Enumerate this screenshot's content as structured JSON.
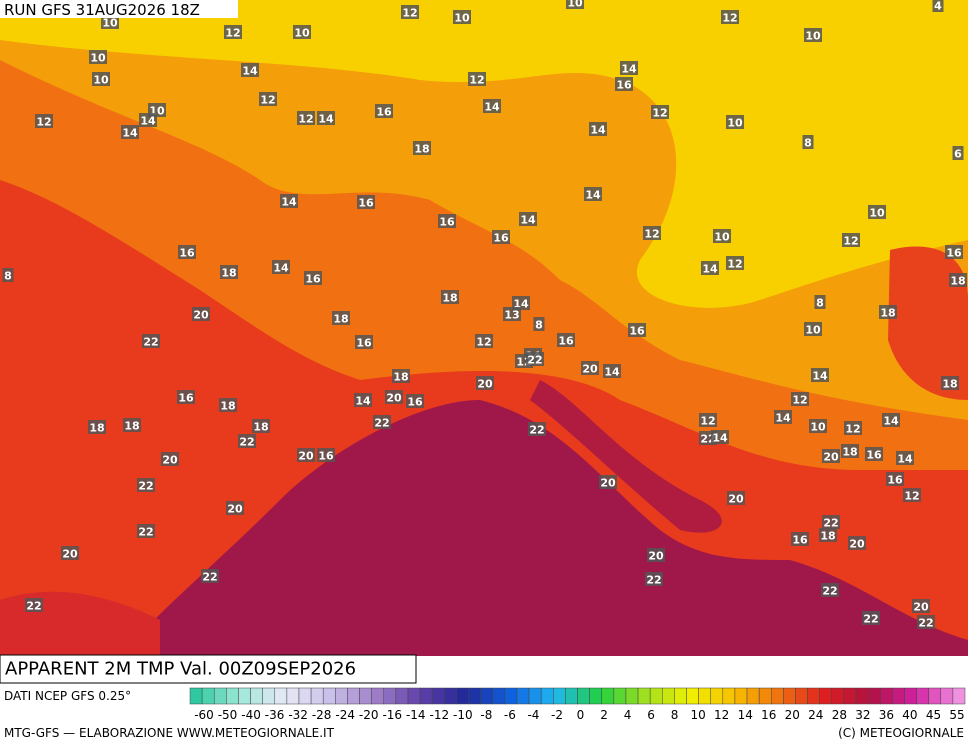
{
  "header": {
    "run": "RUN GFS 31AUG2026 18Z",
    "title": "APPARENT 2M TMP Val. 00Z09SEP2026"
  },
  "map": {
    "labels": [
      10,
      12,
      10,
      12,
      10,
      10,
      12,
      10,
      4,
      10,
      10,
      14,
      12,
      12,
      14,
      16,
      14,
      12,
      10,
      14,
      14,
      12,
      12,
      14,
      16,
      14,
      10,
      8,
      6,
      18,
      14,
      16,
      16,
      14,
      14,
      10,
      12,
      10,
      12,
      16,
      14,
      16,
      18,
      8,
      16,
      14,
      12,
      16,
      18,
      18,
      14,
      13,
      8,
      20,
      18,
      8,
      18,
      10,
      16,
      22,
      16,
      12,
      16,
      14,
      12,
      22,
      18,
      20,
      20,
      14,
      14,
      18,
      16,
      18,
      14,
      20,
      16,
      22,
      18,
      18,
      18,
      22,
      12,
      22,
      14,
      12,
      14,
      10,
      12,
      14,
      22,
      20,
      16,
      20,
      20,
      18,
      16,
      14,
      22,
      20,
      16,
      12,
      20,
      20,
      22,
      22,
      18,
      16,
      20,
      20,
      20,
      22,
      22,
      22,
      22,
      20,
      22,
      22
    ]
  },
  "legend": {
    "source": "DATI NCEP GFS 0.25°",
    "ticks": [
      -60,
      -50,
      -40,
      -36,
      -32,
      -28,
      -24,
      -20,
      -16,
      -14,
      -12,
      -10,
      -8,
      -6,
      -4,
      -2,
      0,
      2,
      4,
      6,
      8,
      10,
      12,
      14,
      16,
      20,
      24,
      28,
      32,
      36,
      40,
      45,
      55
    ]
  },
  "footer": {
    "credit": "MTG-GFS — ELABORAZIONE WWW.METEOGIORNALE.IT",
    "copyright": "(C) METEOGIORNALE"
  }
}
